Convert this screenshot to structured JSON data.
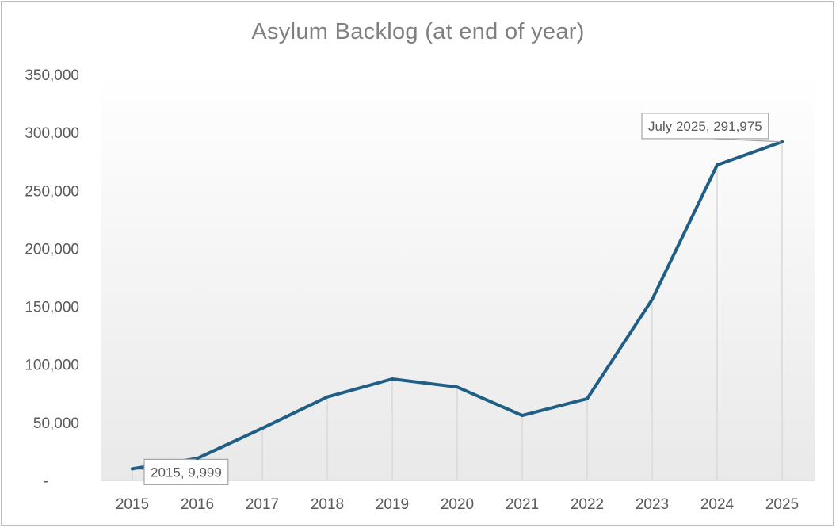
{
  "chart_data": {
    "type": "line",
    "title": "Asylum Backlog (at end of year)",
    "xlabel": "",
    "ylabel": "",
    "categories": [
      "2015",
      "2016",
      "2017",
      "2018",
      "2019",
      "2020",
      "2021",
      "2022",
      "2023",
      "2024",
      "2025"
    ],
    "series": [
      {
        "values": [
          9999,
          19000,
          45000,
          72000,
          87500,
          80500,
          56000,
          70500,
          156000,
          272000,
          291975
        ]
      }
    ],
    "ylim": [
      0,
      350000
    ],
    "yticks": [
      0,
      50000,
      100000,
      150000,
      200000,
      250000,
      300000,
      350000
    ],
    "ytick_labels": [
      "-",
      "50,000",
      "100,000",
      "150,000",
      "200,000",
      "250,000",
      "300,000",
      "350,000"
    ],
    "drop_lines": true,
    "legend": "none",
    "colors": {
      "line": "#1f5f85",
      "text": "#595959",
      "title": "#7f7f7f",
      "drop_line": "#d9d9d9",
      "axis": "#d9d9d9"
    },
    "annotations": [
      {
        "index": 0,
        "text": "2015, 9,999"
      },
      {
        "index": 10,
        "text": "July 2025, 291,975"
      }
    ]
  }
}
